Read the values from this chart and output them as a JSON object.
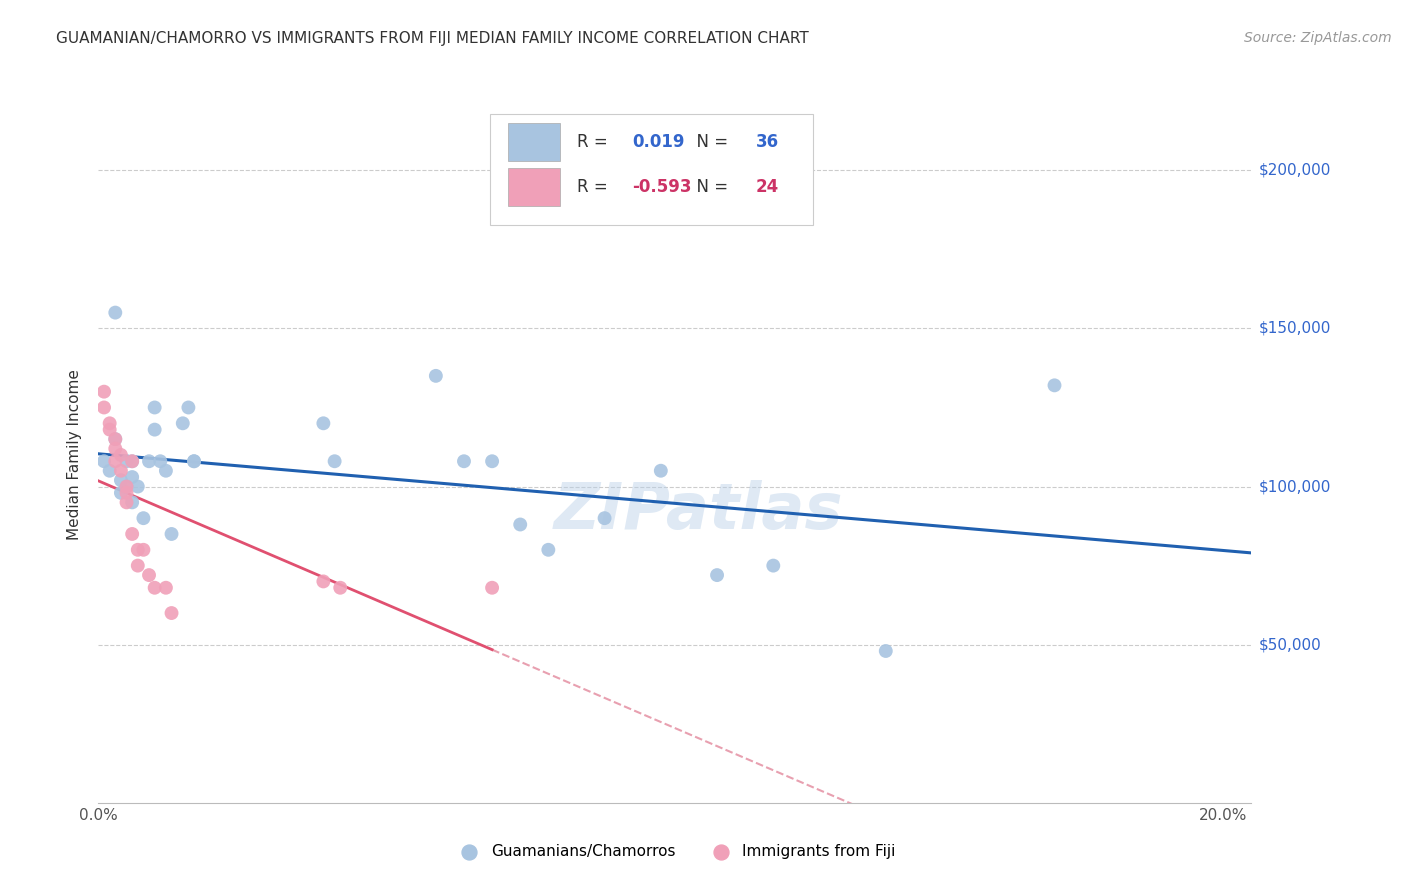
{
  "title": "GUAMANIAN/CHAMORRO VS IMMIGRANTS FROM FIJI MEDIAN FAMILY INCOME CORRELATION CHART",
  "source": "Source: ZipAtlas.com",
  "ylabel": "Median Family Income",
  "xlim": [
    0.0,
    0.205
  ],
  "ylim": [
    0,
    220000
  ],
  "xticks": [
    0.0,
    0.05,
    0.1,
    0.15,
    0.2
  ],
  "xticklabels": [
    "0.0%",
    "",
    "",
    "",
    "20.0%"
  ],
  "ytick_positions": [
    50000,
    100000,
    150000,
    200000
  ],
  "ytick_labels": [
    "$50,000",
    "$100,000",
    "$150,000",
    "$200,000"
  ],
  "blue_R": 0.019,
  "blue_N": 36,
  "pink_R": -0.593,
  "pink_N": 24,
  "blue_color": "#a8c4e0",
  "pink_color": "#f0a0b8",
  "blue_line_color": "#2060b0",
  "pink_line_color": "#e05070",
  "pink_dash_color": "#e8a0b0",
  "watermark": "ZIPatlas",
  "legend_label_blue": "Guamanians/Chamorros",
  "legend_label_pink": "Immigrants from Fiji",
  "blue_points_x": [
    0.001,
    0.002,
    0.003,
    0.003,
    0.004,
    0.004,
    0.005,
    0.005,
    0.006,
    0.006,
    0.006,
    0.007,
    0.008,
    0.009,
    0.01,
    0.01,
    0.011,
    0.012,
    0.013,
    0.015,
    0.016,
    0.017,
    0.017,
    0.04,
    0.042,
    0.06,
    0.065,
    0.07,
    0.075,
    0.08,
    0.09,
    0.1,
    0.11,
    0.12,
    0.14,
    0.17
  ],
  "blue_points_y": [
    108000,
    105000,
    155000,
    115000,
    98000,
    102000,
    100000,
    108000,
    103000,
    95000,
    108000,
    100000,
    90000,
    108000,
    125000,
    118000,
    108000,
    105000,
    85000,
    120000,
    125000,
    108000,
    108000,
    120000,
    108000,
    135000,
    108000,
    108000,
    88000,
    80000,
    90000,
    105000,
    72000,
    75000,
    48000,
    132000
  ],
  "pink_points_x": [
    0.001,
    0.001,
    0.002,
    0.002,
    0.003,
    0.003,
    0.003,
    0.004,
    0.004,
    0.005,
    0.005,
    0.005,
    0.006,
    0.006,
    0.007,
    0.007,
    0.008,
    0.009,
    0.01,
    0.012,
    0.013,
    0.04,
    0.043,
    0.07
  ],
  "pink_points_y": [
    130000,
    125000,
    120000,
    118000,
    115000,
    112000,
    108000,
    110000,
    105000,
    100000,
    98000,
    95000,
    85000,
    108000,
    80000,
    75000,
    80000,
    72000,
    68000,
    68000,
    60000,
    70000,
    68000,
    68000
  ]
}
